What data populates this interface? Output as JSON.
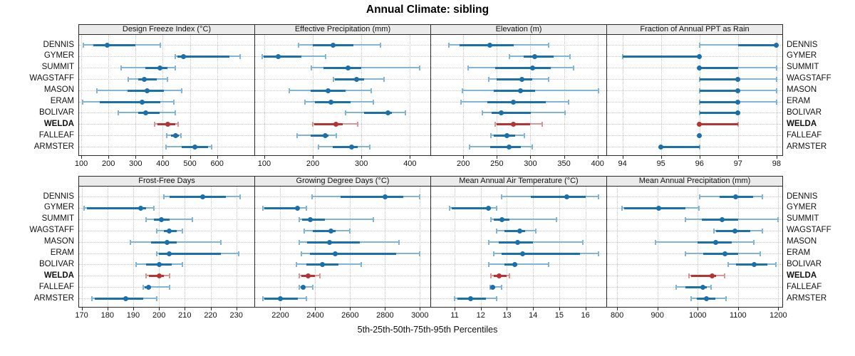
{
  "title": "Annual Climate: sibling",
  "caption": "5th-25th-50th-75th-95th Percentiles",
  "colors": {
    "series": "#1a6fad",
    "series_light": "#7fb5d9",
    "highlight": "#b73333",
    "highlight_light": "#dc9595",
    "strip_bg": "#ebebeb",
    "panel_border": "#2a2a2a",
    "grid": "#c6c6c6",
    "text": "#111111"
  },
  "chart_data": {
    "type": "scatter",
    "subtype": "five-number-summary-dot-interval-trellis",
    "percentiles": [
      "5th",
      "25th",
      "50th",
      "75th",
      "95th"
    ],
    "categories": [
      "DENNIS",
      "GYMER",
      "SUMMIT",
      "WAGSTAFF",
      "MASON",
      "ERAM",
      "BOLIVAR",
      "WELDA",
      "FALLEAF",
      "ARMSTER"
    ],
    "highlighted_category": "WELDA",
    "layout": {
      "grid_rows": 2,
      "grid_cols": 4,
      "legend": "none",
      "grid_style": "dotted",
      "site_labels": "both-sides"
    },
    "panels": [
      {
        "title": "Design Freeze Index (°C)",
        "row": 0,
        "col": 0,
        "xlim": [
          92,
          737
        ],
        "ticks": [
          100,
          200,
          300,
          400,
          500,
          600
        ],
        "values": [
          [
            108,
            144,
            195,
            300,
            390
          ],
          [
            445,
            455,
            475,
            645,
            685
          ],
          [
            246,
            336,
            390,
            418,
            446
          ],
          [
            272,
            310,
            333,
            379,
            417
          ],
          [
            157,
            270,
            343,
            403,
            470
          ],
          [
            105,
            169,
            323,
            390,
            440
          ],
          [
            236,
            310,
            336,
            388,
            446
          ],
          [
            370,
            380,
            418,
            446,
            457
          ],
          [
            414,
            430,
            447,
            460,
            468
          ],
          [
            412,
            470,
            518,
            566,
            579
          ]
        ]
      },
      {
        "title": "Effective Precipitation (mm)",
        "row": 0,
        "col": 1,
        "xlim": [
          81,
          442
        ],
        "ticks": [
          100,
          200,
          300,
          400
        ],
        "values": [
          [
            171,
            200,
            242,
            283,
            340
          ],
          [
            95,
            99,
            128,
            176,
            226
          ],
          [
            197,
            222,
            272,
            300,
            420
          ],
          [
            242,
            246,
            290,
            305,
            346
          ],
          [
            151,
            195,
            232,
            268,
            320
          ],
          [
            183,
            205,
            237,
            278,
            324
          ],
          [
            268,
            305,
            355,
            363,
            390
          ],
          [
            200,
            203,
            247,
            261,
            293
          ],
          [
            168,
            195,
            226,
            232,
            249
          ],
          [
            212,
            241,
            280,
            293,
            317
          ]
        ]
      },
      {
        "title": "Elevation (m)",
        "row": 0,
        "col": 2,
        "xlim": [
          152,
          413
        ],
        "ticks": [
          200,
          250,
          300,
          350,
          400
        ],
        "values": [
          [
            178,
            194,
            239,
            275,
            327
          ],
          [
            269,
            290,
            306,
            334,
            359
          ],
          [
            207,
            248,
            303,
            330,
            364
          ],
          [
            238,
            250,
            287,
            303,
            327
          ],
          [
            199,
            245,
            285,
            307,
            401
          ],
          [
            197,
            236,
            275,
            323,
            357
          ],
          [
            228,
            242,
            257,
            301,
            351
          ],
          [
            247,
            250,
            275,
            300,
            318
          ],
          [
            241,
            245,
            265,
            277,
            291
          ],
          [
            209,
            240,
            268,
            286,
            303
          ]
        ]
      },
      {
        "title": "Fraction of Annual PPT as Rain",
        "row": 0,
        "col": 3,
        "xlim": [
          93.6,
          98.15
        ],
        "ticks": [
          94,
          95,
          96,
          97,
          98
        ],
        "values": [
          [
            96,
            97,
            98,
            98,
            98
          ],
          [
            94,
            94,
            96,
            96,
            96
          ],
          [
            96,
            96,
            96,
            97,
            98
          ],
          [
            96,
            96,
            97,
            97,
            98
          ],
          [
            96,
            96,
            97,
            97,
            98
          ],
          [
            96,
            96,
            97,
            97,
            98
          ],
          [
            96,
            96,
            97,
            97,
            97
          ],
          [
            96,
            96,
            96,
            97,
            97
          ],
          [
            96,
            96,
            96,
            96,
            96
          ],
          [
            95,
            95,
            95,
            96,
            96
          ]
        ]
      },
      {
        "title": "Frost-Free Days",
        "row": 1,
        "col": 0,
        "xlim": [
          169,
          237
        ],
        "ticks": [
          170,
          180,
          190,
          200,
          210,
          220,
          230
        ],
        "values": [
          [
            202,
            204,
            217,
            226,
            231.5
          ],
          [
            171,
            172,
            193,
            195,
            198
          ],
          [
            195,
            198,
            201,
            204,
            213
          ],
          [
            199,
            202,
            204,
            207,
            209
          ],
          [
            189,
            197,
            203,
            207,
            224
          ],
          [
            199,
            200,
            204,
            224,
            231
          ],
          [
            191,
            195,
            200,
            205,
            209
          ],
          [
            195,
            196,
            200,
            202,
            204
          ],
          [
            194,
            194.5,
            196,
            197,
            204
          ],
          [
            174,
            175,
            187,
            194,
            199
          ]
        ]
      },
      {
        "title": "Growing Degree Days (°C)",
        "row": 1,
        "col": 1,
        "xlim": [
          2055,
          3060
        ],
        "ticks": [
          2200,
          2400,
          2600,
          2800,
          3000
        ],
        "values": [
          [
            2380,
            2545,
            2800,
            2905,
            3000
          ],
          [
            2100,
            2110,
            2300,
            2310,
            2350
          ],
          [
            2310,
            2325,
            2370,
            2455,
            2735
          ],
          [
            2335,
            2385,
            2490,
            2515,
            2600
          ],
          [
            2310,
            2355,
            2480,
            2655,
            2880
          ],
          [
            2320,
            2370,
            2515,
            2865,
            3000
          ],
          [
            2290,
            2350,
            2440,
            2535,
            2665
          ],
          [
            2310,
            2320,
            2360,
            2400,
            2425
          ],
          [
            2310,
            2315,
            2330,
            2340,
            2385
          ],
          [
            2100,
            2110,
            2200,
            2300,
            2350
          ]
        ]
      },
      {
        "title": "Mean Annual Air Temperature (°C)",
        "row": 1,
        "col": 2,
        "xlim": [
          10.1,
          16.8
        ],
        "ticks": [
          11,
          12,
          13,
          14,
          15,
          16
        ],
        "values": [
          [
            12.8,
            13.9,
            15.3,
            16.0,
            16.5
          ],
          [
            10.8,
            10.9,
            12.3,
            12.4,
            12.6
          ],
          [
            12.4,
            12.5,
            12.8,
            13.1,
            14.9
          ],
          [
            12.6,
            12.9,
            13.5,
            13.7,
            14.1
          ],
          [
            12.3,
            12.7,
            13.4,
            14.0,
            15.9
          ],
          [
            12.5,
            12.8,
            13.6,
            15.8,
            16.5
          ],
          [
            12.3,
            12.9,
            13.3,
            13.4,
            14.6
          ],
          [
            12.4,
            12.5,
            12.7,
            13.0,
            13.1
          ],
          [
            12.35,
            12.4,
            12.45,
            12.55,
            12.8
          ],
          [
            11.0,
            11.1,
            11.6,
            12.2,
            12.6
          ]
        ]
      },
      {
        "title": "Mean Annual Precipitation (mm)",
        "row": 1,
        "col": 3,
        "xlim": [
          775,
          1210
        ],
        "ticks": [
          800,
          900,
          1000,
          1100,
          1200
        ],
        "values": [
          [
            1005,
            1055,
            1095,
            1138,
            1160
          ],
          [
            813,
            818,
            903,
            970,
            1003
          ],
          [
            970,
            1010,
            1060,
            1100,
            1200
          ],
          [
            1040,
            1045,
            1093,
            1130,
            1160
          ],
          [
            895,
            1000,
            1045,
            1085,
            1140
          ],
          [
            970,
            1013,
            1067,
            1100,
            1155
          ],
          [
            1075,
            1095,
            1140,
            1173,
            1194
          ],
          [
            978,
            983,
            1035,
            1045,
            1066
          ],
          [
            947,
            970,
            1013,
            1022,
            1034
          ],
          [
            983,
            998,
            1021,
            1044,
            1070
          ]
        ]
      }
    ]
  }
}
